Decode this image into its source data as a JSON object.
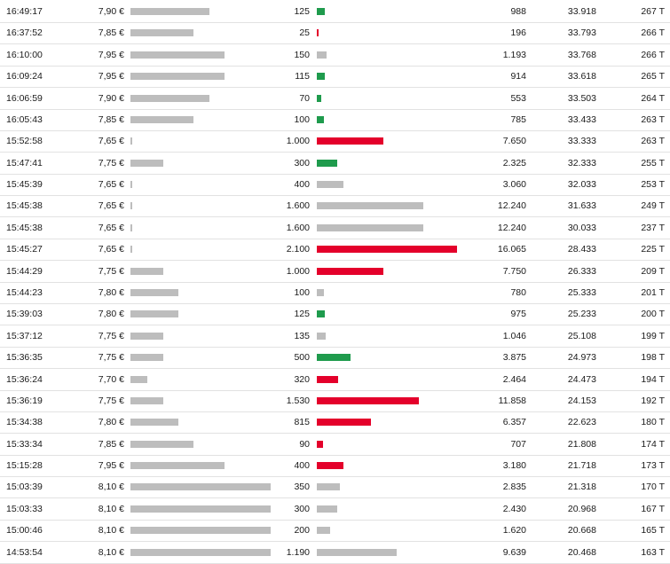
{
  "colors": {
    "neutral": "#bdbdbd",
    "sell": "#e4002b",
    "buy": "#1f9b4d"
  },
  "trades": [
    {
      "time": "16:49:17",
      "price": "7,90 €",
      "price_value": 7.9,
      "qty": "125",
      "qty_value": 125,
      "side": "buy",
      "turnover": "988",
      "cumulative": "33.918",
      "count": "267 T"
    },
    {
      "time": "16:37:52",
      "price": "7,85 €",
      "price_value": 7.85,
      "qty": "25",
      "qty_value": 25,
      "side": "sell",
      "turnover": "196",
      "cumulative": "33.793",
      "count": "266 T"
    },
    {
      "time": "16:10:00",
      "price": "7,95 €",
      "price_value": 7.95,
      "qty": "150",
      "qty_value": 150,
      "side": "neutral",
      "turnover": "1.193",
      "cumulative": "33.768",
      "count": "266 T"
    },
    {
      "time": "16:09:24",
      "price": "7,95 €",
      "price_value": 7.95,
      "qty": "115",
      "qty_value": 115,
      "side": "buy",
      "turnover": "914",
      "cumulative": "33.618",
      "count": "265 T"
    },
    {
      "time": "16:06:59",
      "price": "7,90 €",
      "price_value": 7.9,
      "qty": "70",
      "qty_value": 70,
      "side": "buy",
      "turnover": "553",
      "cumulative": "33.503",
      "count": "264 T"
    },
    {
      "time": "16:05:43",
      "price": "7,85 €",
      "price_value": 7.85,
      "qty": "100",
      "qty_value": 100,
      "side": "buy",
      "turnover": "785",
      "cumulative": "33.433",
      "count": "263 T"
    },
    {
      "time": "15:52:58",
      "price": "7,65 €",
      "price_value": 7.65,
      "qty": "1.000",
      "qty_value": 1000,
      "side": "sell",
      "turnover": "7.650",
      "cumulative": "33.333",
      "count": "263 T"
    },
    {
      "time": "15:47:41",
      "price": "7,75 €",
      "price_value": 7.75,
      "qty": "300",
      "qty_value": 300,
      "side": "buy",
      "turnover": "2.325",
      "cumulative": "32.333",
      "count": "255 T"
    },
    {
      "time": "15:45:39",
      "price": "7,65 €",
      "price_value": 7.65,
      "qty": "400",
      "qty_value": 400,
      "side": "neutral",
      "turnover": "3.060",
      "cumulative": "32.033",
      "count": "253 T"
    },
    {
      "time": "15:45:38",
      "price": "7,65 €",
      "price_value": 7.65,
      "qty": "1.600",
      "qty_value": 1600,
      "side": "neutral",
      "turnover": "12.240",
      "cumulative": "31.633",
      "count": "249 T"
    },
    {
      "time": "15:45:38",
      "price": "7,65 €",
      "price_value": 7.65,
      "qty": "1.600",
      "qty_value": 1600,
      "side": "neutral",
      "turnover": "12.240",
      "cumulative": "30.033",
      "count": "237 T"
    },
    {
      "time": "15:45:27",
      "price": "7,65 €",
      "price_value": 7.65,
      "qty": "2.100",
      "qty_value": 2100,
      "side": "sell",
      "turnover": "16.065",
      "cumulative": "28.433",
      "count": "225 T"
    },
    {
      "time": "15:44:29",
      "price": "7,75 €",
      "price_value": 7.75,
      "qty": "1.000",
      "qty_value": 1000,
      "side": "sell",
      "turnover": "7.750",
      "cumulative": "26.333",
      "count": "209 T"
    },
    {
      "time": "15:44:23",
      "price": "7,80 €",
      "price_value": 7.8,
      "qty": "100",
      "qty_value": 100,
      "side": "neutral",
      "turnover": "780",
      "cumulative": "25.333",
      "count": "201 T"
    },
    {
      "time": "15:39:03",
      "price": "7,80 €",
      "price_value": 7.8,
      "qty": "125",
      "qty_value": 125,
      "side": "buy",
      "turnover": "975",
      "cumulative": "25.233",
      "count": "200 T"
    },
    {
      "time": "15:37:12",
      "price": "7,75 €",
      "price_value": 7.75,
      "qty": "135",
      "qty_value": 135,
      "side": "neutral",
      "turnover": "1.046",
      "cumulative": "25.108",
      "count": "199 T"
    },
    {
      "time": "15:36:35",
      "price": "7,75 €",
      "price_value": 7.75,
      "qty": "500",
      "qty_value": 500,
      "side": "buy",
      "turnover": "3.875",
      "cumulative": "24.973",
      "count": "198 T"
    },
    {
      "time": "15:36:24",
      "price": "7,70 €",
      "price_value": 7.7,
      "qty": "320",
      "qty_value": 320,
      "side": "sell",
      "turnover": "2.464",
      "cumulative": "24.473",
      "count": "194 T"
    },
    {
      "time": "15:36:19",
      "price": "7,75 €",
      "price_value": 7.75,
      "qty": "1.530",
      "qty_value": 1530,
      "side": "sell",
      "turnover": "11.858",
      "cumulative": "24.153",
      "count": "192 T"
    },
    {
      "time": "15:34:38",
      "price": "7,80 €",
      "price_value": 7.8,
      "qty": "815",
      "qty_value": 815,
      "side": "sell",
      "turnover": "6.357",
      "cumulative": "22.623",
      "count": "180 T"
    },
    {
      "time": "15:33:34",
      "price": "7,85 €",
      "price_value": 7.85,
      "qty": "90",
      "qty_value": 90,
      "side": "sell",
      "turnover": "707",
      "cumulative": "21.808",
      "count": "174 T"
    },
    {
      "time": "15:15:28",
      "price": "7,95 €",
      "price_value": 7.95,
      "qty": "400",
      "qty_value": 400,
      "side": "sell",
      "turnover": "3.180",
      "cumulative": "21.718",
      "count": "173 T"
    },
    {
      "time": "15:03:39",
      "price": "8,10 €",
      "price_value": 8.1,
      "qty": "350",
      "qty_value": 350,
      "side": "neutral",
      "turnover": "2.835",
      "cumulative": "21.318",
      "count": "170 T"
    },
    {
      "time": "15:03:33",
      "price": "8,10 €",
      "price_value": 8.1,
      "qty": "300",
      "qty_value": 300,
      "side": "neutral",
      "turnover": "2.430",
      "cumulative": "20.968",
      "count": "167 T"
    },
    {
      "time": "15:00:46",
      "price": "8,10 €",
      "price_value": 8.1,
      "qty": "200",
      "qty_value": 200,
      "side": "neutral",
      "turnover": "1.620",
      "cumulative": "20.668",
      "count": "165 T"
    },
    {
      "time": "14:53:54",
      "price": "8,10 €",
      "price_value": 8.1,
      "qty": "1.190",
      "qty_value": 1190,
      "side": "neutral",
      "turnover": "9.639",
      "cumulative": "20.468",
      "count": "163 T"
    }
  ]
}
